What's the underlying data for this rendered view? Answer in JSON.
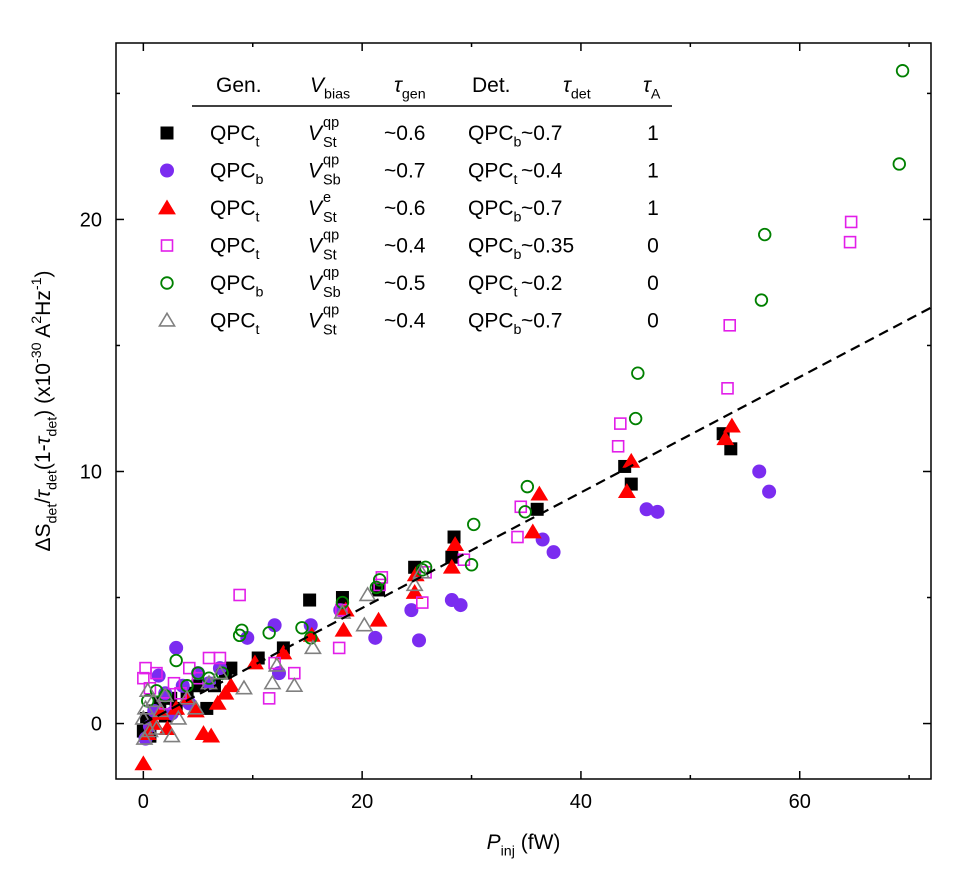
{
  "chart_data": {
    "type": "scatter",
    "xlabel_main": "P",
    "xlabel_sub": "inj",
    "xlabel_unit": " (fW)",
    "ylabel_parts": [
      {
        "t": "ΔS",
        "k": "n"
      },
      {
        "t": "det",
        "k": "sub"
      },
      {
        "t": "/",
        "k": "n"
      },
      {
        "t": "τ",
        "k": "i"
      },
      {
        "t": "det",
        "k": "sub"
      },
      {
        "t": "(1-",
        "k": "n"
      },
      {
        "t": "τ",
        "k": "i"
      },
      {
        "t": "det",
        "k": "sub"
      },
      {
        "t": ") (x10",
        "k": "n"
      },
      {
        "t": "-30",
        "k": "sup"
      },
      {
        "t": " A",
        "k": "n"
      },
      {
        "t": "2",
        "k": "sup"
      },
      {
        "t": "Hz",
        "k": "n"
      },
      {
        "t": "-1",
        "k": "sup"
      },
      {
        "t": ")",
        "k": "n"
      }
    ],
    "xlim": [
      -2.5,
      72
    ],
    "ylim": [
      -2.2,
      27
    ],
    "x_ticks": [
      0,
      20,
      40,
      60
    ],
    "x_tick_labels": [
      "0",
      "20",
      "40",
      "60"
    ],
    "y_ticks": [
      0,
      10,
      20
    ],
    "y_tick_labels": [
      "0",
      "10",
      "20"
    ],
    "fit_line": {
      "style": "dashed",
      "x0": 0,
      "y0": 0,
      "x1": 72,
      "y1": 16.5
    },
    "legend_headers": {
      "gen": "Gen.",
      "vbias": {
        "main": "V",
        "sub": "bias"
      },
      "tgen": {
        "main": "τ",
        "sub": "gen"
      },
      "det": "Det.",
      "tdet": {
        "main": "τ",
        "sub": "det"
      },
      "ta": {
        "main": "τ",
        "sub": "A"
      }
    },
    "series": [
      {
        "marker": "square",
        "fill": "#000000",
        "stroke": "#000000",
        "gen": "QPC",
        "gen_sub": "t",
        "v": "V",
        "v_sup": "qp",
        "v_sub": "St",
        "tgen": "~0.6",
        "det": "QPC",
        "det_sub": "b",
        "tdet": "~0.7",
        "ta": "1",
        "points": [
          [
            0,
            -0.3
          ],
          [
            0.3,
            0.2
          ],
          [
            0.6,
            -0.5
          ],
          [
            1,
            0.5
          ],
          [
            1.5,
            0.8
          ],
          [
            2,
            0.3
          ],
          [
            2.5,
            1
          ],
          [
            3,
            0.6
          ],
          [
            4,
            1.2
          ],
          [
            5,
            1.5
          ],
          [
            5.8,
            0.6
          ],
          [
            6.5,
            1.5
          ],
          [
            7.5,
            2
          ],
          [
            8,
            2.2
          ],
          [
            10.5,
            2.6
          ],
          [
            12.8,
            3
          ],
          [
            15.2,
            4.9
          ],
          [
            18.2,
            5
          ],
          [
            21.5,
            5.3
          ],
          [
            24.8,
            6.2
          ],
          [
            28.2,
            6.6
          ],
          [
            28.4,
            7.4
          ],
          [
            36,
            8.5
          ],
          [
            44,
            10.2
          ],
          [
            44.6,
            9.5
          ],
          [
            53,
            11.5
          ],
          [
            53.7,
            10.9
          ]
        ]
      },
      {
        "marker": "circle",
        "fill": "#7b2cf0",
        "stroke": "#7b2cf0",
        "gen": "QPC",
        "gen_sub": "b",
        "v": "V",
        "v_sup": "qp",
        "v_sub": "Sb",
        "tgen": "~0.7",
        "det": "QPC",
        "det_sub": "t",
        "tdet": "~0.4",
        "ta": "1",
        "points": [
          [
            0.2,
            -0.6
          ],
          [
            0.6,
            -0.1
          ],
          [
            1,
            0.5
          ],
          [
            1.4,
            1.9
          ],
          [
            2,
            1.2
          ],
          [
            2.6,
            0.4
          ],
          [
            3,
            3
          ],
          [
            3.6,
            1.5
          ],
          [
            4.2,
            0.8
          ],
          [
            5,
            2
          ],
          [
            6,
            1.6
          ],
          [
            7,
            2.2
          ],
          [
            9.5,
            3.4
          ],
          [
            12,
            3.9
          ],
          [
            12.4,
            2
          ],
          [
            15.3,
            3.9
          ],
          [
            18,
            4.5
          ],
          [
            21.2,
            3.4
          ],
          [
            24.5,
            4.5
          ],
          [
            25.2,
            3.3
          ],
          [
            28.2,
            4.9
          ],
          [
            29,
            4.7
          ],
          [
            36.5,
            7.3
          ],
          [
            37.5,
            6.8
          ],
          [
            46,
            8.5
          ],
          [
            47,
            8.4
          ],
          [
            56.3,
            10
          ],
          [
            57.2,
            9.2
          ]
        ]
      },
      {
        "marker": "triangle",
        "fill": "#ff0000",
        "stroke": "#ff0000",
        "gen": "QPC",
        "gen_sub": "t",
        "v": "V",
        "v_sup": "e",
        "v_sub": "St",
        "tgen": "~0.6",
        "det": "QPC",
        "det_sub": "b",
        "tdet": "~0.7",
        "ta": "1",
        "points": [
          [
            0,
            -1.6
          ],
          [
            0.4,
            -0.4
          ],
          [
            1,
            0
          ],
          [
            1.6,
            0.4
          ],
          [
            2.2,
            -0.2
          ],
          [
            3,
            0.6
          ],
          [
            4,
            1
          ],
          [
            4.8,
            0.5
          ],
          [
            5.5,
            -0.4
          ],
          [
            6.2,
            -0.5
          ],
          [
            6.8,
            0.8
          ],
          [
            7.5,
            1.2
          ],
          [
            8,
            1.5
          ],
          [
            10.2,
            2.4
          ],
          [
            12.8,
            2.8
          ],
          [
            15.4,
            3.5
          ],
          [
            18.3,
            3.7
          ],
          [
            18.5,
            4.5
          ],
          [
            21.5,
            4.1
          ],
          [
            24.8,
            5.2
          ],
          [
            24.9,
            5.9
          ],
          [
            28.2,
            6.2
          ],
          [
            28.5,
            7.1
          ],
          [
            35.6,
            7.6
          ],
          [
            36.2,
            9.1
          ],
          [
            44.2,
            9.2
          ],
          [
            44.6,
            10.4
          ],
          [
            53.2,
            11.3
          ],
          [
            53.8,
            11.8
          ]
        ]
      },
      {
        "marker": "square-open",
        "fill": "none",
        "stroke": "#e21ee9",
        "gen": "QPC",
        "gen_sub": "t",
        "v": "V",
        "v_sup": "qp",
        "v_sub": "St",
        "tgen": "~0.4",
        "det": "QPC",
        "det_sub": "b",
        "tdet": "~0.35",
        "ta": "0",
        "points": [
          [
            0,
            1.8
          ],
          [
            0.2,
            2.2
          ],
          [
            0.6,
            1.4
          ],
          [
            1.2,
            2
          ],
          [
            2,
            0.8
          ],
          [
            2.8,
            1.6
          ],
          [
            3.4,
            1.2
          ],
          [
            4.2,
            2.2
          ],
          [
            5,
            1.8
          ],
          [
            6,
            2.6
          ],
          [
            7,
            2.6
          ],
          [
            8.8,
            5.1
          ],
          [
            11.5,
            1
          ],
          [
            12,
            2.4
          ],
          [
            13.8,
            2
          ],
          [
            17.9,
            3
          ],
          [
            18.1,
            4.5
          ],
          [
            21.6,
            5.5
          ],
          [
            21.8,
            5.8
          ],
          [
            25.5,
            4.8
          ],
          [
            25.8,
            6
          ],
          [
            29.3,
            6.5
          ],
          [
            34.2,
            7.4
          ],
          [
            34.5,
            8.6
          ],
          [
            43.4,
            11
          ],
          [
            43.6,
            11.9
          ],
          [
            53.4,
            13.3
          ],
          [
            53.6,
            15.8
          ],
          [
            64.6,
            19.1
          ],
          [
            64.7,
            19.9
          ]
        ]
      },
      {
        "marker": "circle-open",
        "fill": "none",
        "stroke": "#008000",
        "gen": "QPC",
        "gen_sub": "b",
        "v": "V",
        "v_sup": "qp",
        "v_sub": "Sb",
        "tgen": "~0.5",
        "det": "QPC",
        "det_sub": "t",
        "tdet": "~0.2",
        "ta": "0",
        "points": [
          [
            0.4,
            0.9
          ],
          [
            1.2,
            1.3
          ],
          [
            2,
            1.1
          ],
          [
            3,
            2.5
          ],
          [
            4,
            1.5
          ],
          [
            5,
            2
          ],
          [
            6,
            1.8
          ],
          [
            7.2,
            2
          ],
          [
            8.8,
            3.5
          ],
          [
            9,
            3.7
          ],
          [
            11.5,
            3.6
          ],
          [
            14.5,
            3.8
          ],
          [
            15.3,
            3.4
          ],
          [
            18.2,
            4.8
          ],
          [
            21.3,
            5.4
          ],
          [
            21.6,
            5.7
          ],
          [
            25.5,
            6.1
          ],
          [
            25.8,
            6.2
          ],
          [
            30,
            6.3
          ],
          [
            30.2,
            7.9
          ],
          [
            34.9,
            8.4
          ],
          [
            35.1,
            9.4
          ],
          [
            45,
            12.1
          ],
          [
            45.2,
            13.9
          ],
          [
            56.5,
            16.8
          ],
          [
            56.8,
            19.4
          ],
          [
            69.1,
            22.2
          ],
          [
            69.4,
            25.9
          ]
        ]
      },
      {
        "marker": "triangle-open",
        "fill": "none",
        "stroke": "#808080",
        "gen": "QPC",
        "gen_sub": "t",
        "v": "V",
        "v_sup": "qp",
        "v_sub": "St",
        "tgen": "~0.4",
        "det": "QPC",
        "det_sub": "b",
        "tdet": "~0.7",
        "ta": "0",
        "points": [
          [
            0,
            0.2
          ],
          [
            0.1,
            -0.6
          ],
          [
            0.2,
            0.6
          ],
          [
            0.4,
            1.3
          ],
          [
            0.6,
            -0.3
          ],
          [
            0.9,
            0.9
          ],
          [
            1.2,
            -0.2
          ],
          [
            1.6,
            0.5
          ],
          [
            2,
            1.1
          ],
          [
            2.6,
            -0.5
          ],
          [
            3.2,
            0.2
          ],
          [
            4,
            1
          ],
          [
            4.8,
            0.6
          ],
          [
            6,
            1.6
          ],
          [
            7,
            2
          ],
          [
            9.2,
            1.4
          ],
          [
            11.8,
            1.6
          ],
          [
            12.2,
            2.3
          ],
          [
            13.8,
            1.5
          ],
          [
            15.5,
            3
          ],
          [
            18.2,
            4.4
          ],
          [
            20.2,
            3.9
          ],
          [
            20.5,
            5.1
          ],
          [
            24.8,
            5.5
          ],
          [
            25.4,
            6
          ]
        ]
      }
    ]
  }
}
